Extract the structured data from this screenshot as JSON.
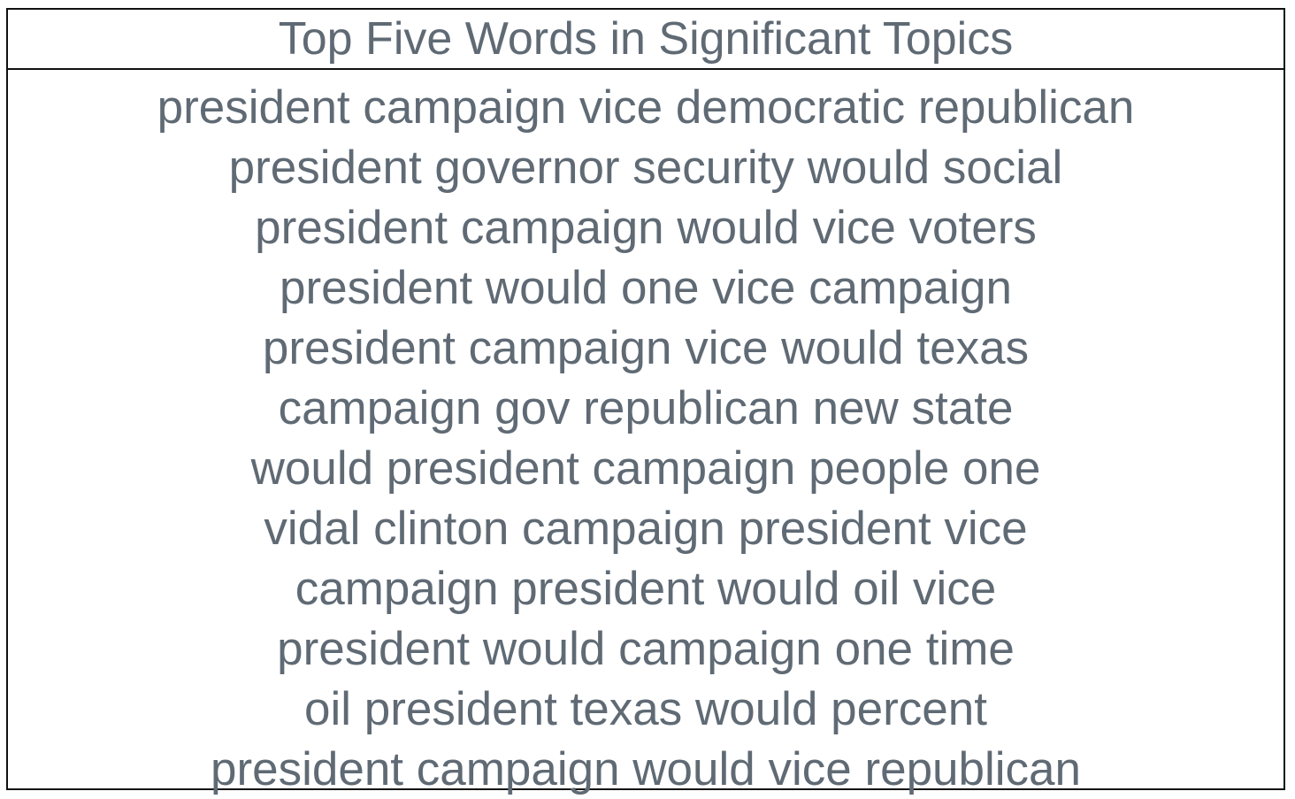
{
  "table": {
    "title": "Top Five Words in Significant Topics",
    "rows": [
      "president campaign vice democratic republican",
      "president governor security would social",
      "president campaign would vice voters",
      "president would one vice campaign",
      "president campaign vice would texas",
      "campaign gov republican new state",
      "would president campaign people one",
      "vidal clinton campaign president vice",
      "campaign president would oil vice",
      "president would campaign one time",
      "oil president texas would percent",
      "president campaign would vice republican"
    ]
  },
  "colors": {
    "text": "#5f6a74",
    "border": "#111111",
    "background": "#ffffff"
  }
}
